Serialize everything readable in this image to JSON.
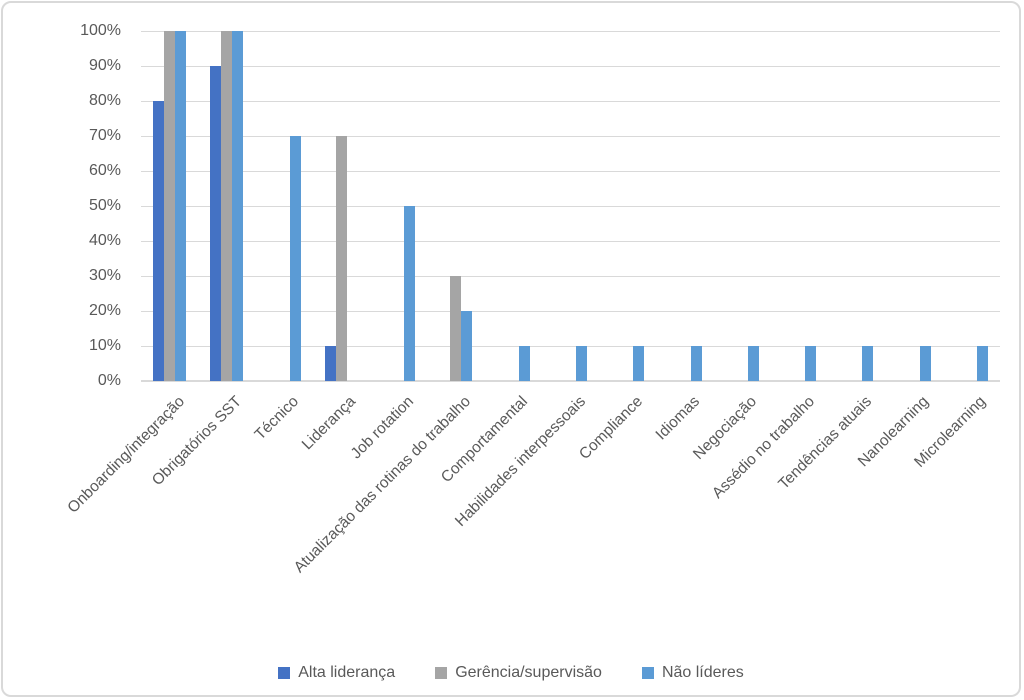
{
  "chart_data": {
    "type": "bar",
    "title": "",
    "xlabel": "",
    "ylabel": "",
    "categories": [
      "Onboarding/integração",
      "Obrigatórios SST",
      "Técnico",
      "Liderança",
      "Job rotation",
      "Atualização das rotinas do trabalho",
      "Comportamental",
      "Habilidades interpessoais",
      "Compliance",
      "Idiomas",
      "Negociação",
      "Assédio no trabalho",
      "Tendências atuais",
      "Nanolearning",
      "Microlearning"
    ],
    "series": [
      {
        "name": "Alta liderança",
        "color": "#4472C4",
        "values": [
          80,
          90,
          0,
          10,
          0,
          0,
          0,
          0,
          0,
          0,
          0,
          0,
          0,
          0,
          0
        ]
      },
      {
        "name": "Gerência/supervisão",
        "color": "#A5A5A5",
        "values": [
          100,
          100,
          0,
          70,
          0,
          30,
          0,
          0,
          0,
          0,
          0,
          0,
          0,
          0,
          0
        ]
      },
      {
        "name": "Não líderes",
        "color": "#5B9BD5",
        "values": [
          100,
          100,
          70,
          0,
          50,
          20,
          10,
          10,
          10,
          10,
          10,
          10,
          10,
          10,
          10
        ]
      }
    ],
    "ylim": [
      0,
      100
    ],
    "y_tick_step": 10,
    "y_tick_labels": [
      "0%",
      "10%",
      "20%",
      "30%",
      "40%",
      "50%",
      "60%",
      "70%",
      "80%",
      "90%",
      "100%"
    ],
    "grid": true,
    "legend_position": "bottom"
  },
  "style": {
    "text_color": "#595959",
    "gridline_color": "#D9D9D9",
    "frame_border_color": "#D9D9D9",
    "background": "#FFFFFF"
  }
}
